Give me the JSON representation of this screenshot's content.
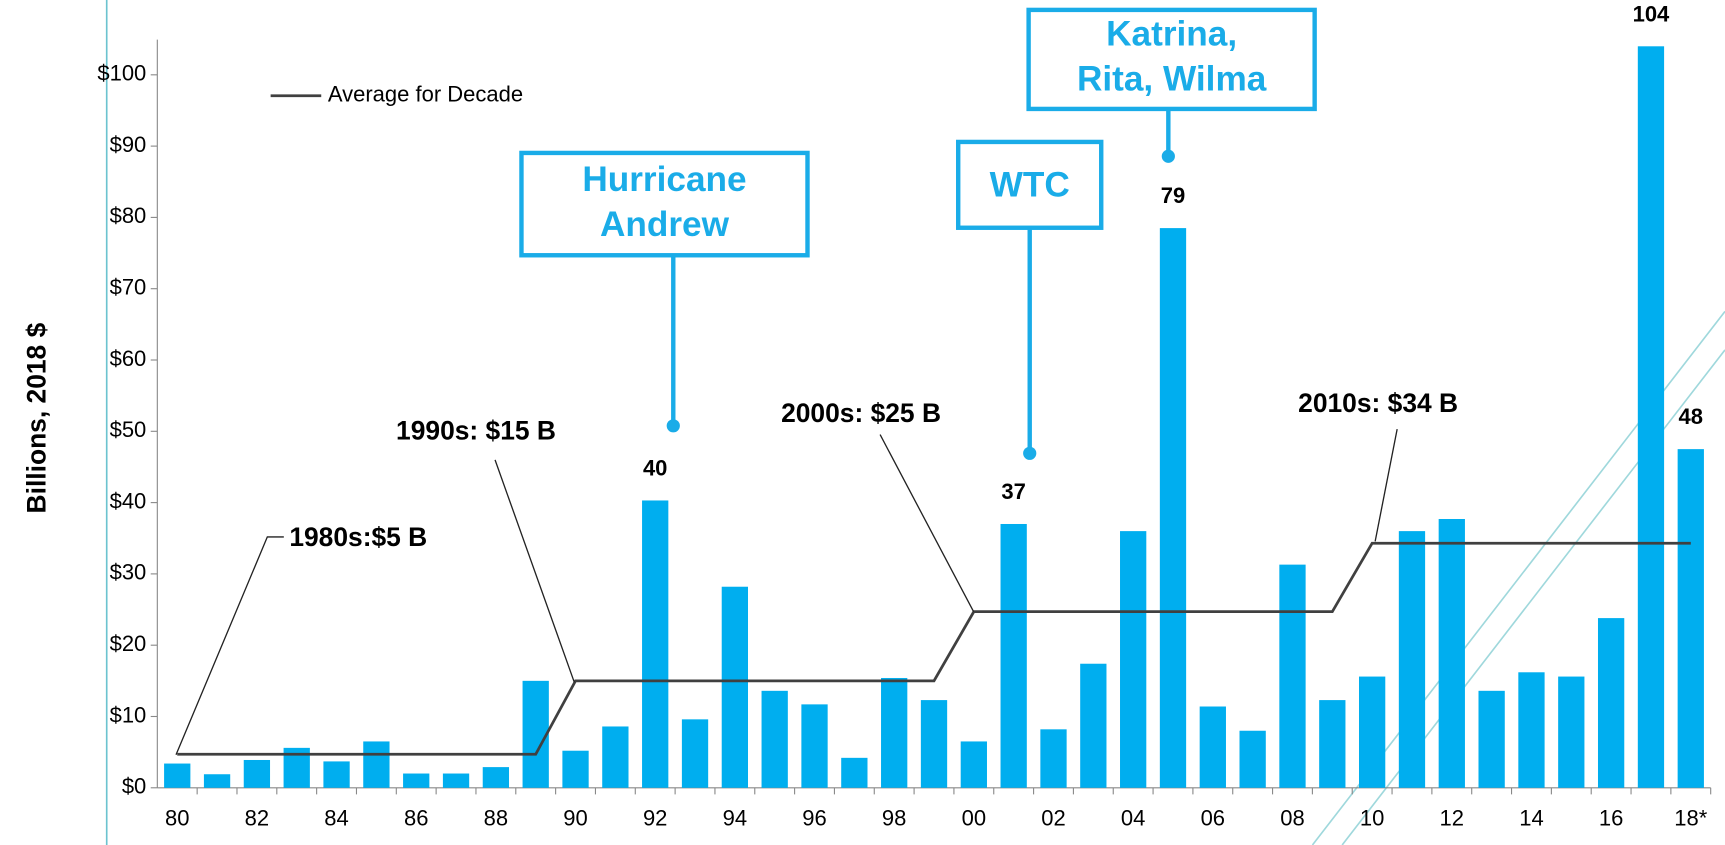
{
  "chart_data": {
    "type": "bar",
    "y_label": "Billions, 2018 $",
    "categories": [
      "80",
      null,
      "82",
      null,
      "84",
      null,
      "86",
      null,
      "88",
      null,
      "90",
      null,
      "92",
      null,
      "94",
      null,
      "96",
      null,
      "98",
      null,
      "00",
      null,
      "02",
      null,
      "04",
      null,
      "06",
      null,
      "08",
      null,
      "10",
      null,
      "12",
      null,
      "14",
      null,
      "16",
      null,
      "18*"
    ],
    "values": [
      3.4,
      1.9,
      3.9,
      5.6,
      3.7,
      6.5,
      2.0,
      2.0,
      2.9,
      15.0,
      5.2,
      8.6,
      40.3,
      9.6,
      28.2,
      13.6,
      11.7,
      4.2,
      15.4,
      12.3,
      6.5,
      37.0,
      8.2,
      17.4,
      36.0,
      78.5,
      11.4,
      8.0,
      31.3,
      12.3,
      15.6,
      36.0,
      37.7,
      13.6,
      16.2,
      15.6,
      23.8,
      104,
      47.5
    ],
    "value_labels": [
      null,
      null,
      null,
      null,
      null,
      null,
      null,
      null,
      null,
      null,
      null,
      null,
      "40",
      null,
      null,
      null,
      null,
      null,
      null,
      null,
      null,
      "37",
      null,
      null,
      null,
      "79",
      null,
      null,
      null,
      null,
      null,
      null,
      null,
      null,
      null,
      null,
      null,
      "104",
      "48"
    ],
    "color": "#00aeef",
    "series": [
      {
        "name": "Average for Decade",
        "type": "line",
        "color": "#404040",
        "values": [
          4.7,
          4.7,
          4.7,
          4.7,
          4.7,
          4.7,
          4.7,
          4.7,
          4.7,
          4.7,
          15.0,
          15.0,
          15.0,
          15.0,
          15.0,
          15.0,
          15.0,
          15.0,
          15.0,
          15.0,
          24.7,
          24.7,
          24.7,
          24.7,
          24.7,
          24.7,
          24.7,
          24.7,
          24.7,
          24.7,
          34.3,
          34.3,
          34.3,
          34.3,
          34.3,
          34.3,
          34.3,
          34.3,
          34.3
        ]
      }
    ],
    "ylim": [
      0,
      100
    ],
    "yticks": [
      {
        "value": 0,
        "label": "$0"
      },
      {
        "value": 10,
        "label": "$10"
      },
      {
        "value": 20,
        "label": "$20"
      },
      {
        "value": 30,
        "label": "$30"
      },
      {
        "value": 40,
        "label": "$40"
      },
      {
        "value": 50,
        "label": "$50"
      },
      {
        "value": 60,
        "label": "$60"
      },
      {
        "value": 70,
        "label": "$70"
      },
      {
        "value": 80,
        "label": "$80"
      },
      {
        "value": 90,
        "label": "$90"
      },
      {
        "value": 100,
        "label": "$100"
      }
    ],
    "legend_position": "upper left",
    "decade_annotations": [
      "1980s:$5 B",
      "1990s: $15 B",
      "2000s: $25 B",
      "2010s: $34 B"
    ],
    "callouts": [
      {
        "lines": [
          "Hurricane",
          "Andrew"
        ]
      },
      {
        "lines": [
          "WTC"
        ]
      },
      {
        "lines": [
          "Katrina,",
          "Rita, Wilma"
        ]
      }
    ],
    "callout_color": "#1aace8"
  }
}
